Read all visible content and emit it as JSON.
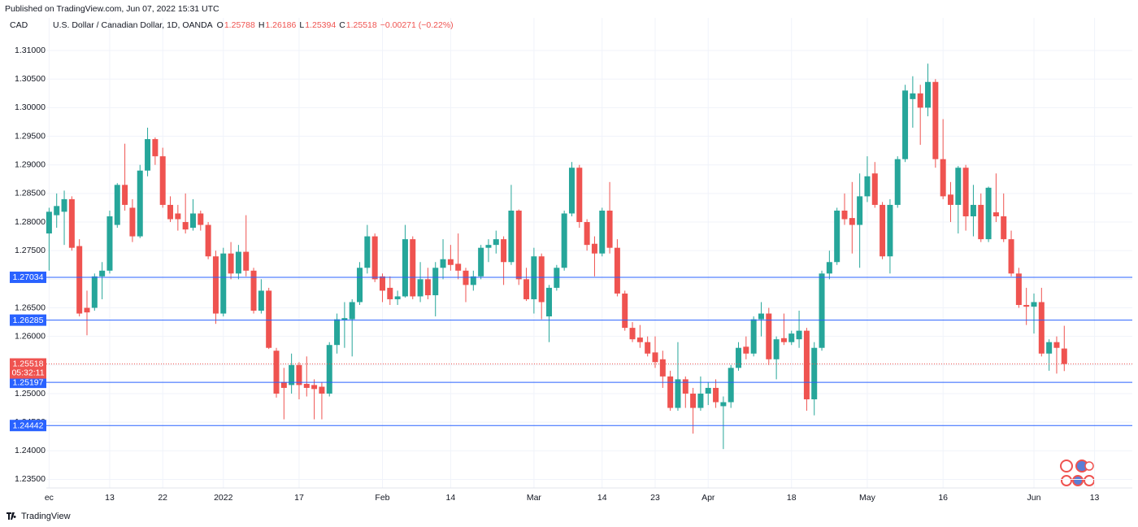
{
  "chart_data": {
    "type": "candlestick",
    "published": "Published on TradingView.com, Jun 07, 2022 15:31 UTC",
    "currency": "CAD",
    "title": "U.S. Dollar / Canadian Dollar, 1D, OANDA",
    "ohlc_labels": [
      "O",
      "H",
      "L",
      "C"
    ],
    "change": "−0.00271 (−0.22%)",
    "countdown": "05:32:11",
    "brand": "TradingView",
    "up_color": "#26a69a",
    "down_color": "#ef5350",
    "hline_color": "#2962ff",
    "grid": true,
    "categories": [
      "ec",
      null,
      null,
      null,
      null,
      null,
      null,
      null,
      "13",
      null,
      null,
      null,
      null,
      null,
      null,
      "22",
      null,
      null,
      null,
      null,
      null,
      null,
      null,
      "2022",
      null,
      null,
      null,
      null,
      null,
      null,
      null,
      null,
      null,
      "17",
      null,
      null,
      null,
      null,
      null,
      null,
      null,
      null,
      null,
      null,
      "Feb",
      null,
      null,
      null,
      null,
      null,
      null,
      null,
      null,
      "14",
      null,
      null,
      null,
      null,
      null,
      null,
      null,
      null,
      null,
      null,
      "Mar",
      null,
      null,
      null,
      null,
      null,
      null,
      null,
      null,
      "14",
      null,
      null,
      null,
      null,
      null,
      null,
      "23",
      null,
      null,
      null,
      null,
      null,
      null,
      "Apr",
      null,
      null,
      null,
      null,
      null,
      null,
      null,
      null,
      null,
      null,
      "18",
      null,
      null,
      null,
      null,
      null,
      null,
      null,
      null,
      null,
      "May",
      null,
      null,
      null,
      null,
      null,
      null,
      null,
      null,
      null,
      "16",
      null,
      null,
      null,
      null,
      null,
      null,
      null,
      null,
      null,
      null,
      null,
      "Jun",
      null,
      null,
      null,
      null,
      null,
      null,
      null,
      "13",
      null,
      null,
      null,
      null
    ],
    "open": [
      1.278,
      1.2812,
      1.2818,
      1.284,
      1.2758,
      1.265,
      1.265,
      1.2705,
      1.2715,
      1.2795,
      1.2865,
      1.2825,
      1.2775,
      1.289,
      1.2945,
      1.2915,
      1.283,
      1.2815,
      1.28,
      1.279,
      1.2815,
      1.2795,
      1.274,
      1.264,
      1.2745,
      1.271,
      1.2748,
      1.2715,
      1.2645,
      1.268,
      1.2575,
      1.252,
      1.2515,
      1.255,
      1.2517,
      1.2515,
      1.2512,
      1.25,
      1.2585,
      1.2628,
      1.263,
      1.266,
      1.272,
      1.2775,
      1.2705,
      1.2685,
      1.2665,
      1.267,
      1.277,
      1.267,
      1.27,
      1.2672,
      1.272,
      1.2735,
      1.2727,
      1.2715,
      1.269,
      1.2705,
      1.2755,
      1.276,
      1.277,
      1.273,
      1.282,
      1.27,
      1.2665,
      1.274,
      1.2635,
      1.2685,
      1.272,
      1.2815,
      1.2895,
      1.28,
      1.2762,
      1.2745,
      1.282,
      1.2755,
      1.2675,
      1.2615,
      1.2598,
      1.259,
      1.2572,
      1.256,
      1.253,
      1.2475,
      1.2525,
      1.25,
      1.2475,
      1.25,
      1.251,
      1.2478,
      1.2485,
      1.2545,
      1.2582,
      1.257,
      1.263,
      1.264,
      1.256,
      1.2597,
      1.259,
      1.2595,
      1.261,
      1.249,
      1.258,
      1.271,
      1.273,
      1.282,
      1.2807,
      1.2795,
      1.2845,
      1.2885,
      1.283,
      1.274,
      1.283,
      1.291,
      1.3015,
      1.3025,
      1.3,
      1.3045,
      1.291,
      1.2848,
      1.283,
      1.2895,
      1.281,
      1.283,
      1.277,
      1.2817,
      1.281,
      1.277,
      1.271,
      1.2655,
      1.2652,
      1.266,
      1.257,
      1.259,
      1.25788,
      null,
      null,
      null,
      null,
      null,
      null,
      null,
      null
    ],
    "high": [
      1.2825,
      1.285,
      1.2855,
      1.2845,
      1.277,
      1.268,
      1.271,
      1.273,
      1.282,
      1.2868,
      1.2937,
      1.284,
      1.29,
      1.2965,
      1.2948,
      1.293,
      1.2845,
      1.283,
      1.285,
      1.284,
      1.282,
      1.28,
      1.275,
      1.2755,
      1.2765,
      1.276,
      1.2812,
      1.272,
      1.27,
      1.2685,
      1.258,
      1.2545,
      1.257,
      1.2555,
      1.2565,
      1.2525,
      1.252,
      1.259,
      1.264,
      1.266,
      1.2665,
      1.273,
      1.2795,
      1.278,
      1.271,
      1.2705,
      1.268,
      1.2795,
      1.2775,
      1.273,
      1.272,
      1.273,
      1.277,
      1.276,
      1.278,
      1.272,
      1.2715,
      1.276,
      1.277,
      1.2785,
      1.2775,
      1.2865,
      1.2822,
      1.272,
      1.2755,
      1.2745,
      1.269,
      1.2725,
      1.282,
      1.2905,
      1.29,
      1.2805,
      1.2775,
      1.2825,
      1.287,
      1.277,
      1.268,
      1.2625,
      1.262,
      1.26,
      1.26,
      1.2575,
      1.254,
      1.259,
      1.253,
      1.251,
      1.253,
      1.252,
      1.2525,
      1.2495,
      1.255,
      1.259,
      1.26,
      1.2635,
      1.266,
      1.265,
      1.26,
      1.264,
      1.261,
      1.2645,
      1.2615,
      1.259,
      1.2715,
      1.275,
      1.2825,
      1.285,
      1.287,
      1.2885,
      1.2915,
      1.2905,
      1.2835,
      1.284,
      1.2915,
      1.304,
      1.3055,
      1.304,
      1.3077,
      1.305,
      1.298,
      1.287,
      1.2898,
      1.29,
      1.2865,
      1.285,
      1.2862,
      1.2885,
      1.285,
      1.2785,
      1.272,
      1.2685,
      1.2675,
      1.2685,
      1.2595,
      1.26,
      1.26186,
      null,
      null,
      null,
      null,
      null,
      null,
      null,
      null
    ],
    "low": [
      1.2715,
      1.279,
      1.276,
      1.275,
      1.2635,
      1.2602,
      1.2645,
      1.2665,
      1.271,
      1.279,
      1.282,
      1.2765,
      1.2772,
      1.288,
      1.29,
      1.2825,
      1.28,
      1.2785,
      1.278,
      1.2785,
      1.2785,
      1.2735,
      1.2622,
      1.2635,
      1.27,
      1.27,
      1.2705,
      1.264,
      1.264,
      1.2578,
      1.2493,
      1.2455,
      1.25,
      1.249,
      1.2495,
      1.2455,
      1.2455,
      1.2495,
      1.257,
      1.258,
      1.2565,
      1.2655,
      1.271,
      1.2695,
      1.266,
      1.2655,
      1.2655,
      1.2668,
      1.2665,
      1.266,
      1.2665,
      1.2635,
      1.27,
      1.2715,
      1.27,
      1.266,
      1.268,
      1.27,
      1.273,
      1.2745,
      1.269,
      1.2725,
      1.269,
      1.2662,
      1.264,
      1.263,
      1.259,
      1.268,
      1.2715,
      1.281,
      1.279,
      1.275,
      1.2705,
      1.274,
      1.2745,
      1.267,
      1.261,
      1.259,
      1.258,
      1.2565,
      1.2545,
      1.251,
      1.247,
      1.247,
      1.2475,
      1.243,
      1.247,
      1.248,
      1.2475,
      1.2403,
      1.2475,
      1.254,
      1.256,
      1.2565,
      1.26,
      1.255,
      1.2525,
      1.2585,
      1.2585,
      1.258,
      1.247,
      1.2462,
      1.2575,
      1.27,
      1.2725,
      1.2795,
      1.2745,
      1.272,
      1.2835,
      1.2825,
      1.2735,
      1.271,
      1.2825,
      1.2905,
      1.2965,
      1.2935,
      1.2985,
      1.2895,
      1.284,
      1.28,
      1.278,
      1.2785,
      1.2775,
      1.2765,
      1.2765,
      1.28,
      1.2765,
      1.2705,
      1.265,
      1.262,
      1.2605,
      1.2565,
      1.254,
      1.2535,
      1.25394,
      null,
      null,
      null,
      null,
      null,
      null,
      null,
      null
    ],
    "close": [
      1.2818,
      1.2828,
      1.284,
      1.2755,
      1.264,
      1.2642,
      1.2705,
      1.2715,
      1.281,
      1.2865,
      1.283,
      1.2775,
      1.289,
      1.2945,
      1.2915,
      1.283,
      1.2805,
      1.2805,
      1.2787,
      1.2815,
      1.2795,
      1.274,
      1.264,
      1.2745,
      1.271,
      1.2748,
      1.2715,
      1.2645,
      1.268,
      1.258,
      1.25,
      1.251,
      1.255,
      1.2515,
      1.251,
      1.2508,
      1.25,
      1.2585,
      1.263,
      1.2632,
      1.266,
      1.272,
      1.2775,
      1.27,
      1.268,
      1.2665,
      1.267,
      1.277,
      1.267,
      1.27,
      1.2672,
      1.272,
      1.2735,
      1.2725,
      1.2715,
      1.269,
      1.2705,
      1.2755,
      1.276,
      1.277,
      1.273,
      1.282,
      1.27,
      1.2665,
      1.274,
      1.266,
      1.2685,
      1.272,
      1.2815,
      1.2895,
      1.28,
      1.276,
      1.2745,
      1.282,
      1.2755,
      1.2675,
      1.2615,
      1.2595,
      1.259,
      1.257,
      1.2555,
      1.253,
      1.2475,
      1.2525,
      1.25,
      1.2475,
      1.25,
      1.251,
      1.2485,
      1.2485,
      1.2545,
      1.258,
      1.257,
      1.263,
      1.264,
      1.256,
      1.2595,
      1.259,
      1.2605,
      1.261,
      1.249,
      1.258,
      1.271,
      1.273,
      1.282,
      1.2805,
      1.2795,
      1.2845,
      1.288,
      1.283,
      1.274,
      1.283,
      1.291,
      1.303,
      1.3025,
      1.3,
      1.3045,
      1.291,
      1.2845,
      1.283,
      1.2895,
      1.281,
      1.283,
      1.277,
      1.286,
      1.281,
      1.277,
      1.271,
      1.2655,
      1.2652,
      1.266,
      1.257,
      1.259,
      1.258,
      1.25518,
      null,
      null,
      null,
      null,
      null,
      null,
      null,
      null
    ],
    "ylim": [
      1.2335,
      1.3157
    ],
    "yticks": [
      {
        "value": 1.235,
        "label": "1.23500"
      },
      {
        "value": 1.24,
        "label": "1.24000"
      },
      {
        "value": 1.245,
        "label": "1.24500"
      },
      {
        "value": 1.25,
        "label": "1.25000"
      },
      {
        "value": 1.255,
        "label": "1.25500"
      },
      {
        "value": 1.26,
        "label": "1.26000"
      },
      {
        "value": 1.265,
        "label": "1.26500"
      },
      {
        "value": 1.27,
        "label": "1.27000"
      },
      {
        "value": 1.275,
        "label": "1.27500"
      },
      {
        "value": 1.28,
        "label": "1.28000"
      },
      {
        "value": 1.285,
        "label": "1.28500"
      },
      {
        "value": 1.29,
        "label": "1.29000"
      },
      {
        "value": 1.295,
        "label": "1.29500"
      },
      {
        "value": 1.3,
        "label": "1.30000"
      },
      {
        "value": 1.305,
        "label": "1.30500"
      },
      {
        "value": 1.31,
        "label": "1.31000"
      }
    ],
    "hlines": [
      1.27034,
      1.26285,
      1.25197,
      1.24442
    ]
  }
}
